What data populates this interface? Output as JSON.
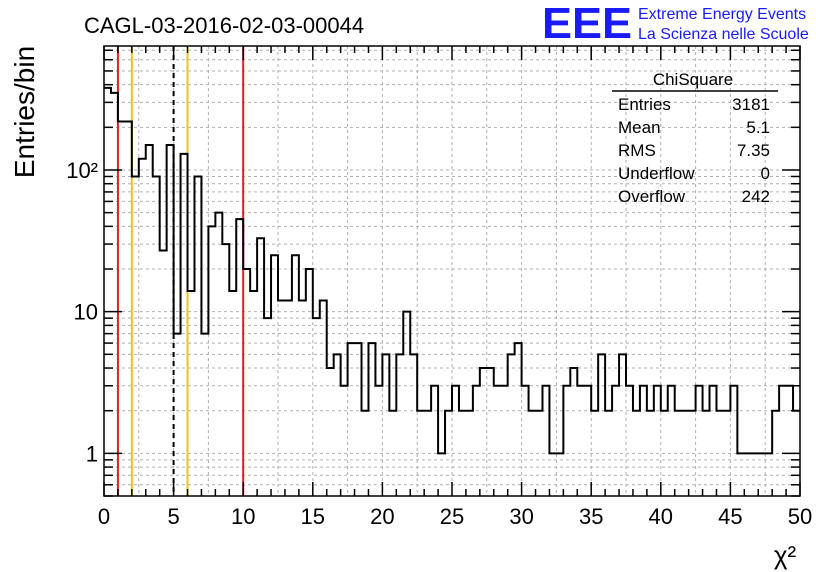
{
  "header": {
    "title": "CAGL-03-2016-02-03-00044",
    "logo_text": "EEE",
    "logo_line1": "Extreme Energy Events",
    "logo_line2": "La Scienza nelle Scuole",
    "logo_color": "#1a1aff"
  },
  "stats": {
    "name": "ChiSquare",
    "rows": [
      {
        "label": "Entries",
        "value": "3181"
      },
      {
        "label": "Mean",
        "value": "5.1"
      },
      {
        "label": "RMS",
        "value": "7.35"
      },
      {
        "label": "Underflow",
        "value": "0"
      },
      {
        "label": "Overflow",
        "value": "242"
      }
    ]
  },
  "chart_data": {
    "type": "histogram",
    "xlabel": "χ²",
    "ylabel": "Entries/bin",
    "xlim": [
      0,
      50
    ],
    "ylim": [
      0.5,
      750
    ],
    "log_y": true,
    "grid": true,
    "bin_width": 0.5,
    "xticks": [
      0,
      5,
      10,
      15,
      20,
      25,
      30,
      35,
      40,
      45,
      50
    ],
    "yticks": [
      {
        "value": 1,
        "label": "1"
      },
      {
        "value": 10,
        "label": "10"
      },
      {
        "value": 100,
        "label": "10²"
      }
    ],
    "values": [
      380,
      350,
      220,
      220,
      90,
      120,
      150,
      90,
      27,
      150,
      7,
      130,
      14,
      90,
      7,
      40,
      50,
      30,
      14,
      45,
      20,
      14,
      33,
      9,
      25,
      12,
      12,
      25,
      12,
      20,
      9,
      12,
      4,
      5,
      3,
      6,
      6,
      2,
      6,
      3,
      5,
      2,
      5,
      10,
      5,
      2,
      2,
      3,
      1,
      2,
      3,
      2,
      2,
      3,
      4,
      4,
      3,
      3,
      5,
      6,
      3,
      2,
      2,
      3,
      1,
      1,
      3,
      4,
      3,
      3,
      2,
      5,
      2,
      3,
      5,
      3,
      2,
      3,
      2,
      3,
      2,
      3,
      2,
      2,
      2,
      3,
      2,
      3,
      2,
      2,
      3,
      1,
      1,
      1,
      1,
      1,
      2,
      3,
      3,
      2
    ],
    "vertical_lines": [
      {
        "x": 1,
        "color": "#e02020",
        "style": "solid"
      },
      {
        "x": 2,
        "color": "#f0c020",
        "style": "solid"
      },
      {
        "x": 5,
        "color": "#000000",
        "style": "dashed"
      },
      {
        "x": 6,
        "color": "#f0c020",
        "style": "solid"
      },
      {
        "x": 10,
        "color": "#e02020",
        "style": "solid"
      }
    ]
  }
}
